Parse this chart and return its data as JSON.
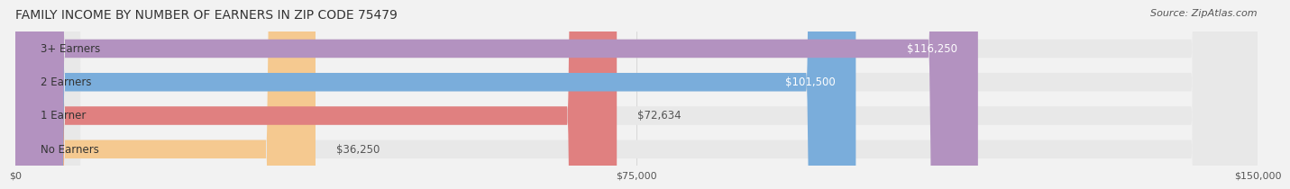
{
  "title": "FAMILY INCOME BY NUMBER OF EARNERS IN ZIP CODE 75479",
  "source": "Source: ZipAtlas.com",
  "categories": [
    "No Earners",
    "1 Earner",
    "2 Earners",
    "3+ Earners"
  ],
  "values": [
    36250,
    72634,
    101500,
    116250
  ],
  "bar_colors": [
    "#f5c990",
    "#e08080",
    "#7aaddb",
    "#b392c0"
  ],
  "label_colors": [
    "#555555",
    "#555555",
    "#ffffff",
    "#ffffff"
  ],
  "xlim": [
    0,
    150000
  ],
  "xtick_values": [
    0,
    75000,
    150000
  ],
  "xtick_labels": [
    "$0",
    "$75,000",
    "$150,000"
  ],
  "bar_height": 0.55,
  "background_color": "#f2f2f2",
  "bar_bg_color": "#e8e8e8",
  "title_fontsize": 10,
  "source_fontsize": 8,
  "label_fontsize": 8.5,
  "category_fontsize": 8.5,
  "tick_fontsize": 8
}
